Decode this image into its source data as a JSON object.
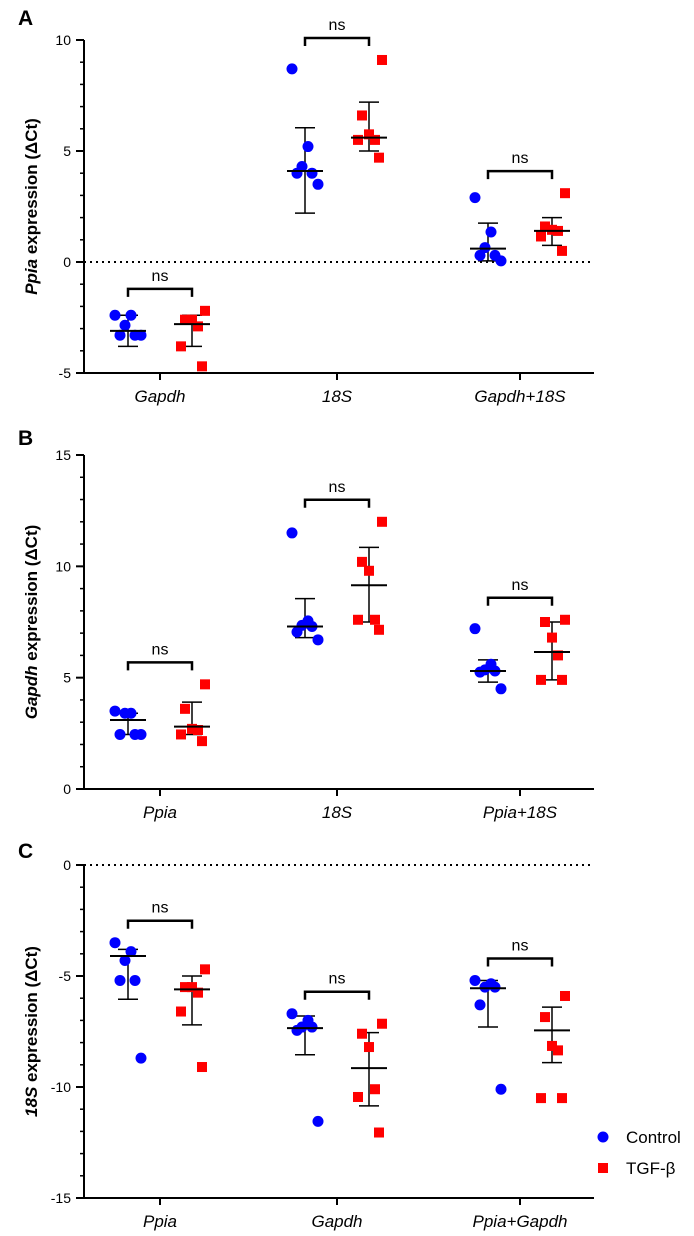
{
  "colors": {
    "control": "#0000ff",
    "tgf": "#ff0000",
    "axis": "#000000"
  },
  "legend": {
    "position": "bottom-right",
    "items": [
      {
        "label": "Control",
        "marker": "circle",
        "color": "#0000ff"
      },
      {
        "label": "TGF-β",
        "marker": "square",
        "color": "#ff0000"
      }
    ]
  },
  "chart_data": [
    {
      "panel": "A",
      "type": "scatter",
      "ylabel_italic": "Ppia",
      "ylabel_rest": " expression (ΔCt)",
      "ylim": [
        -5,
        10
      ],
      "yticks": [
        -5,
        0,
        5,
        10
      ],
      "zero_line": true,
      "categories": [
        "Gapdh",
        "18S",
        "Gapdh+18S"
      ],
      "series": [
        {
          "name": "Control",
          "values": [
            [
              -2.4,
              -2.4,
              -2.85,
              -3.3,
              -3.3,
              -3.3
            ],
            [
              8.7,
              5.2,
              4.3,
              4.0,
              4.0,
              3.5
            ],
            [
              2.9,
              1.35,
              0.65,
              0.3,
              0.3,
              0.05
            ]
          ],
          "mean": [
            -3.1,
            4.1,
            0.6
          ],
          "sd_low": [
            -3.8,
            2.2,
            0.05
          ],
          "sd_high": [
            -2.4,
            6.05,
            1.75
          ]
        },
        {
          "name": "TGF-β",
          "values": [
            [
              -2.2,
              -2.6,
              -2.6,
              -2.9,
              -3.8,
              -4.7
            ],
            [
              9.1,
              6.6,
              5.75,
              5.5,
              5.5,
              4.7
            ],
            [
              3.1,
              1.6,
              1.45,
              1.4,
              1.15,
              0.5
            ]
          ],
          "mean": [
            -2.8,
            5.6,
            1.4
          ],
          "sd_low": [
            -3.8,
            5.0,
            0.75
          ],
          "sd_high": [
            -2.4,
            7.2,
            2.0
          ]
        }
      ],
      "comparisons": [
        {
          "category": "Gapdh",
          "label": "ns"
        },
        {
          "category": "18S",
          "label": "ns"
        },
        {
          "category": "Gapdh+18S",
          "label": "ns"
        }
      ]
    },
    {
      "panel": "B",
      "type": "scatter",
      "ylabel_italic": "Gapdh",
      "ylabel_rest": " expression (ΔCt)",
      "ylim": [
        0,
        15
      ],
      "yticks": [
        0,
        5,
        10,
        15
      ],
      "zero_line": false,
      "categories": [
        "Ppia",
        "18S",
        "Ppia+18S"
      ],
      "series": [
        {
          "name": "Control",
          "values": [
            [
              3.5,
              3.4,
              3.4,
              2.45,
              2.45,
              2.45
            ],
            [
              11.5,
              7.55,
              7.35,
              7.3,
              7.05,
              6.7
            ],
            [
              7.2,
              5.6,
              5.35,
              5.3,
              5.25,
              4.5
            ]
          ],
          "mean": [
            3.1,
            7.3,
            5.3
          ],
          "sd_low": [
            2.45,
            6.8,
            4.8
          ],
          "sd_high": [
            3.4,
            8.55,
            5.8
          ]
        },
        {
          "name": "TGF-β",
          "values": [
            [
              4.7,
              3.6,
              2.7,
              2.65,
              2.45,
              2.15
            ],
            [
              12.0,
              10.2,
              9.8,
              7.6,
              7.6,
              7.15
            ],
            [
              7.6,
              7.5,
              6.8,
              6.0,
              4.9,
              4.9
            ]
          ],
          "mean": [
            2.8,
            9.15,
            6.15
          ],
          "sd_low": [
            2.45,
            7.5,
            4.9
          ],
          "sd_high": [
            3.9,
            10.85,
            7.5
          ]
        }
      ],
      "comparisons": [
        {
          "category": "Ppia",
          "label": "ns"
        },
        {
          "category": "18S",
          "label": "ns"
        },
        {
          "category": "Ppia+18S",
          "label": "ns"
        }
      ]
    },
    {
      "panel": "C",
      "type": "scatter",
      "ylabel_italic": "18S",
      "ylabel_rest": " expression (ΔCt)",
      "ylim": [
        -15,
        0
      ],
      "yticks": [
        -15,
        -10,
        -5,
        0
      ],
      "zero_line": true,
      "categories": [
        "Ppia",
        "Gapdh",
        "Ppia+Gapdh"
      ],
      "series": [
        {
          "name": "Control",
          "values": [
            [
              -3.5,
              -3.9,
              -4.3,
              -5.2,
              -5.2,
              -8.7
            ],
            [
              -6.7,
              -7.0,
              -7.3,
              -7.3,
              -7.45,
              -11.55
            ],
            [
              -5.2,
              -5.35,
              -5.5,
              -5.5,
              -6.3,
              -10.1
            ]
          ],
          "mean": [
            -4.1,
            -7.35,
            -5.55
          ],
          "sd_low": [
            -6.05,
            -8.55,
            -7.3
          ],
          "sd_high": [
            -3.8,
            -6.8,
            -5.2
          ]
        },
        {
          "name": "TGF-β",
          "values": [
            [
              -4.7,
              -5.5,
              -5.5,
              -5.75,
              -6.6,
              -9.1
            ],
            [
              -7.15,
              -7.6,
              -8.2,
              -10.1,
              -10.45,
              -12.05
            ],
            [
              -5.9,
              -6.85,
              -8.15,
              -8.35,
              -10.5,
              -10.5
            ]
          ],
          "mean": [
            -5.6,
            -9.15,
            -7.45
          ],
          "sd_low": [
            -7.2,
            -10.85,
            -8.9
          ],
          "sd_high": [
            -5.0,
            -7.55,
            -6.4
          ]
        }
      ],
      "comparisons": [
        {
          "category": "Ppia",
          "label": "ns"
        },
        {
          "category": "Gapdh",
          "label": "ns"
        },
        {
          "category": "Ppia+Gapdh",
          "label": "ns"
        }
      ]
    }
  ]
}
